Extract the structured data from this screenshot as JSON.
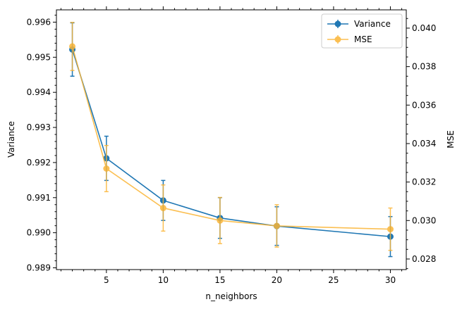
{
  "chart_data": {
    "type": "line",
    "xlabel": "n_neighbors",
    "ylabel_left": "Variance",
    "ylabel_right": "MSE",
    "x": [
      2,
      5,
      10,
      15,
      20,
      30
    ],
    "x_ticks": [
      "5",
      "10",
      "15",
      "20",
      "25",
      "30"
    ],
    "xlim": [
      0.6,
      31.4
    ],
    "left_axis": {
      "ylim": [
        0.98895,
        0.99635
      ],
      "ticks": [
        "0.989",
        "0.990",
        "0.991",
        "0.992",
        "0.993",
        "0.994",
        "0.995",
        "0.996"
      ]
    },
    "right_axis": {
      "ylim": [
        0.02745,
        0.04095
      ],
      "ticks": [
        "0.028",
        "0.030",
        "0.032",
        "0.034",
        "0.036",
        "0.038",
        "0.040"
      ]
    },
    "series": [
      {
        "name": "Variance",
        "axis": "left",
        "color": "#1f77b4",
        "values": [
          0.99522,
          0.99212,
          0.99092,
          0.99042,
          0.99019,
          0.98989
        ],
        "errors": [
          0.00076,
          0.00063,
          0.00057,
          0.00058,
          0.00055,
          0.00057
        ]
      },
      {
        "name": "MSE",
        "axis": "right",
        "color": "#fbb534",
        "values": [
          0.03905,
          0.0327,
          0.03065,
          0.03,
          0.02972,
          0.02955
        ],
        "errors": [
          0.00125,
          0.0012,
          0.0012,
          0.0012,
          0.0011,
          0.0011
        ]
      }
    ],
    "legend": {
      "position": "top-right",
      "entries": [
        "Variance",
        "MSE"
      ]
    },
    "grid": false
  }
}
